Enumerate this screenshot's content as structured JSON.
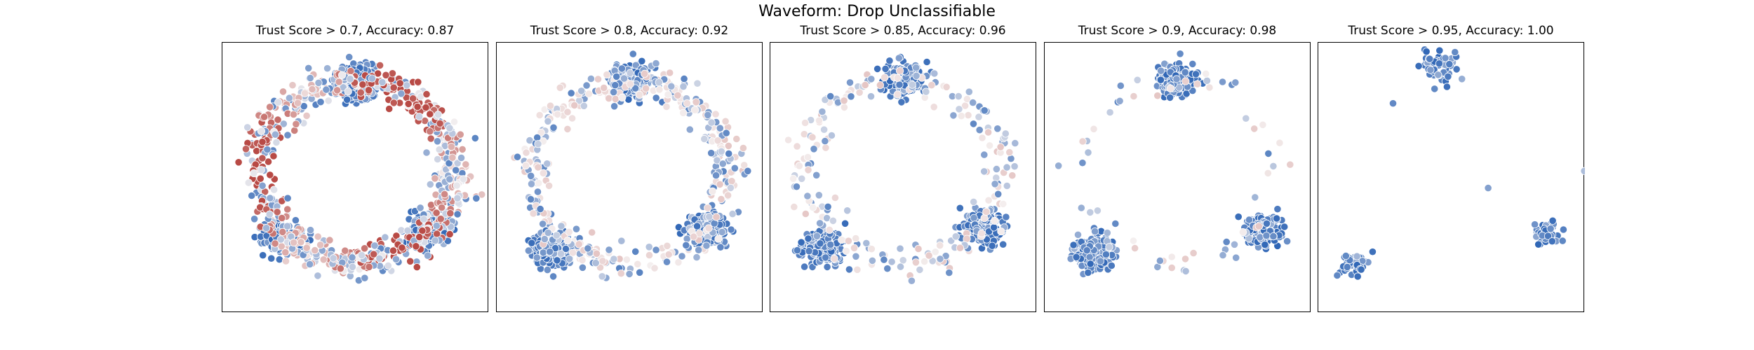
{
  "title": "Waveform: Drop Unclassifiable",
  "colors": {
    "positive": "#2f66b6",
    "neutral": "#f4efef",
    "negative": "#b84a45",
    "marker_edge": "#ffffff",
    "frame": "#000000"
  },
  "chart_data": [
    {
      "type": "scatter",
      "subtitle_prefix": "Trust Score > ",
      "threshold": "0.7",
      "accuracy_prefix": ", Accuracy: ",
      "accuracy": "0.87",
      "title": "Trust Score > 0.7, Accuracy: 0.87",
      "grid": false,
      "point_count": 1500,
      "clusters": [
        {
          "x": 0.0,
          "y": 0.78,
          "spread": 0.08,
          "share": 0.22,
          "color": "blue"
        },
        {
          "x": -0.62,
          "y": -0.5,
          "spread": 0.08,
          "share": 0.16,
          "color": "blue"
        },
        {
          "x": 0.62,
          "y": -0.42,
          "spread": 0.08,
          "share": 0.14,
          "color": "blue"
        },
        {
          "x": 0.0,
          "y": 0.1,
          "spread": 0.7,
          "share": 0.48,
          "color": "mixed-ring"
        }
      ]
    },
    {
      "type": "scatter",
      "subtitle_prefix": "Trust Score > ",
      "threshold": "0.8",
      "accuracy_prefix": ", Accuracy: ",
      "accuracy": "0.92",
      "title": "Trust Score > 0.8, Accuracy: 0.92",
      "grid": false,
      "point_count": 1100,
      "clusters": [
        {
          "x": 0.0,
          "y": 0.8,
          "spread": 0.08,
          "share": 0.24,
          "color": "blue"
        },
        {
          "x": -0.65,
          "y": -0.58,
          "spread": 0.08,
          "share": 0.22,
          "color": "blue"
        },
        {
          "x": 0.66,
          "y": -0.42,
          "spread": 0.08,
          "share": 0.2,
          "color": "blue"
        },
        {
          "x": 0.0,
          "y": 0.1,
          "spread": 0.7,
          "share": 0.34,
          "color": "light-ring"
        }
      ]
    },
    {
      "type": "scatter",
      "subtitle_prefix": "Trust Score > ",
      "threshold": "0.85",
      "accuracy_prefix": ", Accuracy: ",
      "accuracy": "0.96",
      "title": "Trust Score > 0.85, Accuracy: 0.96",
      "grid": false,
      "point_count": 900,
      "clusters": [
        {
          "x": 0.0,
          "y": 0.8,
          "spread": 0.08,
          "share": 0.26,
          "color": "blue"
        },
        {
          "x": -0.68,
          "y": -0.58,
          "spread": 0.08,
          "share": 0.26,
          "color": "blue"
        },
        {
          "x": 0.68,
          "y": -0.4,
          "spread": 0.08,
          "share": 0.24,
          "color": "blue"
        },
        {
          "x": 0.0,
          "y": 0.1,
          "spread": 0.7,
          "share": 0.24,
          "color": "light-ring"
        }
      ]
    },
    {
      "type": "scatter",
      "subtitle_prefix": "Trust Score > ",
      "threshold": "0.9",
      "accuracy_prefix": ", Accuracy: ",
      "accuracy": "0.98",
      "title": "Trust Score > 0.9, Accuracy: 0.98",
      "grid": false,
      "point_count": 620,
      "clusters": [
        {
          "x": 0.0,
          "y": 0.8,
          "spread": 0.08,
          "share": 0.31,
          "color": "blue"
        },
        {
          "x": -0.72,
          "y": -0.6,
          "spread": 0.08,
          "share": 0.31,
          "color": "blue"
        },
        {
          "x": 0.72,
          "y": -0.42,
          "spread": 0.08,
          "share": 0.28,
          "color": "blue"
        },
        {
          "x": 0.0,
          "y": 0.1,
          "spread": 0.7,
          "share": 0.1,
          "color": "light-ring"
        }
      ]
    },
    {
      "type": "scatter",
      "subtitle_prefix": "Trust Score > ",
      "threshold": "0.95",
      "accuracy_prefix": ", Accuracy: ",
      "accuracy": "1.00",
      "title": "Trust Score > 0.95, Accuracy: 1.00",
      "grid": false,
      "point_count": 150,
      "clusters": [
        {
          "x": -0.1,
          "y": 0.9,
          "spread": 0.09,
          "share": 0.38,
          "color": "blue"
        },
        {
          "x": -0.82,
          "y": -0.7,
          "spread": 0.06,
          "share": 0.3,
          "color": "blue"
        },
        {
          "x": 0.8,
          "y": -0.44,
          "spread": 0.06,
          "share": 0.29,
          "color": "blue"
        },
        {
          "x": 0.0,
          "y": 0.1,
          "spread": 0.7,
          "share": 0.03,
          "color": "blue"
        }
      ]
    }
  ]
}
